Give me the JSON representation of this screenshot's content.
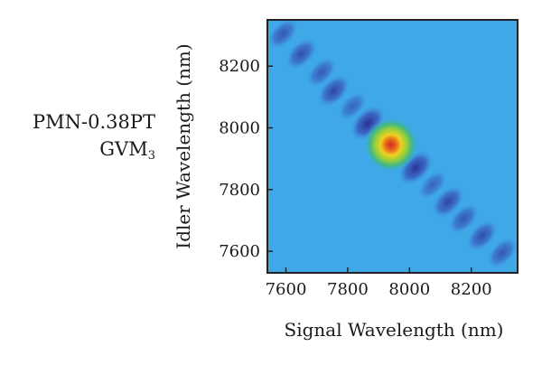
{
  "annotation": {
    "material": "PMN-0.38PT",
    "label_main": "GVM",
    "label_sub": "3"
  },
  "chart_data": {
    "type": "heatmap",
    "title": "",
    "xlabel": "Signal Wavelength (nm)",
    "ylabel": "Idler Wavelength (nm)",
    "xlim": [
      7540,
      8350
    ],
    "ylim": [
      7530,
      8350
    ],
    "xticks": [
      7600,
      7800,
      8000,
      8200
    ],
    "yticks": [
      7600,
      7800,
      8000,
      8200
    ],
    "background_color": "#3fa9e8",
    "peak": {
      "x": 7940,
      "y": 7945,
      "level": 1.0
    },
    "lobes": [
      {
        "x": 7590,
        "y": 8305,
        "level": -0.3
      },
      {
        "x": 7650,
        "y": 8240,
        "level": -0.4
      },
      {
        "x": 7715,
        "y": 8180,
        "level": -0.25
      },
      {
        "x": 7755,
        "y": 8120,
        "level": -0.5
      },
      {
        "x": 7815,
        "y": 8070,
        "level": -0.15
      },
      {
        "x": 7865,
        "y": 8015,
        "level": -0.75
      },
      {
        "x": 8020,
        "y": 7870,
        "level": -0.7
      },
      {
        "x": 8075,
        "y": 7815,
        "level": -0.15
      },
      {
        "x": 8125,
        "y": 7760,
        "level": -0.5
      },
      {
        "x": 8175,
        "y": 7705,
        "level": -0.3
      },
      {
        "x": 8235,
        "y": 7650,
        "level": -0.4
      },
      {
        "x": 8300,
        "y": 7595,
        "level": -0.3
      }
    ],
    "colors": {
      "negative": "#2a2b8e",
      "positive_low": "#3fbf8a",
      "positive_mid": "#c8d83a",
      "positive_high": "#f0b020",
      "peak": "#d52a1e"
    }
  }
}
